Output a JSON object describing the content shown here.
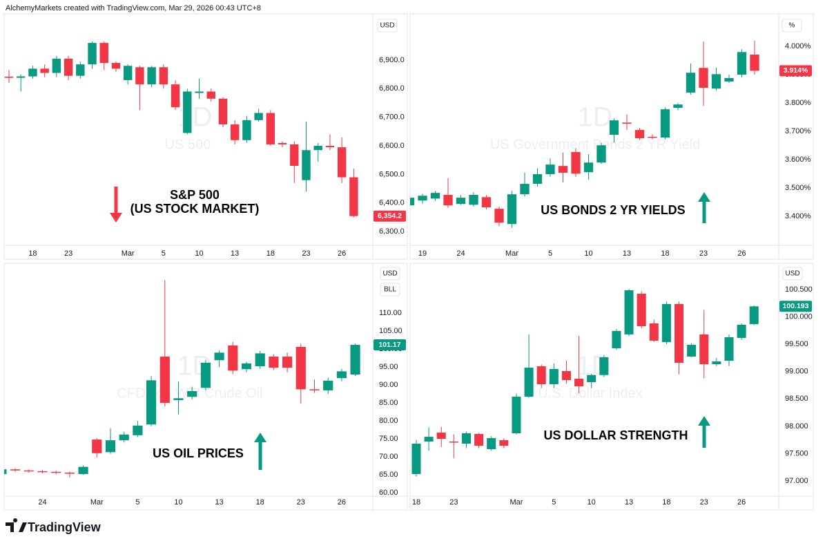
{
  "header": "AlchemyMarkets created with TradingView.com, Mar 29, 2026 00:43 UTC+8",
  "footer": "TradingView",
  "chart_data": [
    {
      "type": "candlestick",
      "watermark": [
        "1D",
        "US 500"
      ],
      "annotation": [
        "S&P 500",
        "(US STOCK MARKET)"
      ],
      "axis_labels": [
        "USD"
      ],
      "last_label": "6,354.2",
      "colors": {
        "up": "#089981",
        "down": "#f23645"
      },
      "categories": [
        null,
        null,
        "18",
        null,
        null,
        "23",
        null,
        null,
        null,
        null,
        "Mar",
        null,
        null,
        "5",
        null,
        null,
        "10",
        null,
        null,
        "13",
        null,
        null,
        "18",
        null,
        null,
        "23",
        null,
        null,
        "26",
        null
      ],
      "open": [
        6842,
        6838,
        6843,
        6870,
        6855,
        6905,
        6845,
        6885,
        6960,
        6890,
        6830,
        6875,
        6815,
        6875,
        6815,
        6645,
        6785,
        6790,
        6765,
        6675,
        6620,
        6690,
        6715,
        6610,
        6605,
        6480,
        6585,
        6600,
        6595,
        6490
      ],
      "close": [
        6838,
        6843,
        6870,
        6855,
        6905,
        6845,
        6885,
        6960,
        6890,
        6870,
        6880,
        6815,
        6875,
        6815,
        6735,
        6790,
        6790,
        6765,
        6675,
        6620,
        6690,
        6715,
        6605,
        6605,
        6530,
        6585,
        6600,
        6595,
        6490,
        6354.2
      ],
      "high": [
        6865,
        6850,
        6880,
        6885,
        6915,
        6915,
        6895,
        6965,
        6965,
        6895,
        6885,
        6880,
        6880,
        6885,
        6830,
        6800,
        6835,
        6800,
        6770,
        6690,
        6705,
        6730,
        6725,
        6615,
        6615,
        6685,
        6610,
        6640,
        6630,
        6520
      ],
      "low": [
        6820,
        6790,
        6835,
        6840,
        6840,
        6830,
        6835,
        6870,
        6865,
        6860,
        6815,
        6725,
        6805,
        6800,
        6725,
        6640,
        6765,
        6755,
        6665,
        6605,
        6610,
        6685,
        6600,
        6595,
        6470,
        6440,
        6545,
        6585,
        6470,
        6350
      ],
      "ylim": [
        6252,
        7057
      ],
      "grid": false,
      "yticks": [
        {
          "value": 6300,
          "label": "6,300.0"
        },
        {
          "value": 6400,
          "label": "6,400.0"
        },
        {
          "value": 6500,
          "label": "6,500.0"
        },
        {
          "value": 6600,
          "label": "6,600.0"
        },
        {
          "value": 6700,
          "label": "6,700.0"
        },
        {
          "value": 6800,
          "label": "6,800.0"
        },
        {
          "value": 6900,
          "label": "6,900.0"
        }
      ]
    },
    {
      "type": "candlestick",
      "watermark": [
        "1D",
        "US Government Bonds 2 YR Yield"
      ],
      "annotation": [
        "US BONDS 2 YR YIELDS"
      ],
      "axis_labels": [
        "%"
      ],
      "last_label": "3.914%",
      "colors": {
        "up": "#089981",
        "down": "#f23645"
      },
      "categories": [
        null,
        "19",
        null,
        null,
        "24",
        null,
        null,
        null,
        "Mar",
        null,
        null,
        "5",
        null,
        null,
        "10",
        null,
        null,
        "13",
        null,
        null,
        "18",
        null,
        null,
        "23",
        null,
        null,
        "26",
        null
      ],
      "open": [
        3.439,
        3.456,
        3.463,
        3.476,
        3.444,
        3.441,
        3.468,
        3.427,
        3.373,
        3.478,
        3.515,
        3.549,
        3.578,
        3.627,
        3.556,
        3.59,
        3.688,
        3.731,
        3.705,
        3.681,
        3.678,
        3.783,
        3.837,
        3.924,
        3.851,
        3.876,
        3.9,
        3.971
      ],
      "close": [
        3.466,
        3.473,
        3.483,
        3.439,
        3.466,
        3.476,
        3.432,
        3.378,
        3.478,
        3.515,
        3.549,
        3.583,
        3.554,
        3.551,
        3.59,
        3.651,
        3.739,
        3.727,
        3.676,
        3.678,
        3.778,
        3.795,
        3.907,
        3.854,
        3.902,
        3.888,
        3.98,
        3.914
      ],
      "high": [
        3.475,
        3.48,
        3.49,
        3.535,
        3.475,
        3.485,
        3.475,
        3.435,
        3.49,
        3.555,
        3.57,
        3.605,
        3.625,
        3.64,
        3.62,
        3.66,
        3.745,
        3.76,
        3.712,
        3.69,
        3.785,
        3.8,
        3.94,
        4.017,
        3.925,
        3.9,
        3.99,
        4.02
      ],
      "low": [
        3.43,
        3.445,
        3.455,
        3.43,
        3.44,
        3.435,
        3.425,
        3.365,
        3.36,
        3.47,
        3.505,
        3.54,
        3.52,
        3.54,
        3.53,
        3.585,
        3.66,
        3.705,
        3.67,
        3.672,
        3.672,
        3.775,
        3.83,
        3.79,
        3.845,
        3.87,
        3.89,
        3.9
      ],
      "ylim": [
        3.298,
        4.11
      ],
      "grid": false,
      "yticks": [
        {
          "value": 3.4,
          "label": "3.400%"
        },
        {
          "value": 3.5,
          "label": "3.500%"
        },
        {
          "value": 3.6,
          "label": "3.600%"
        },
        {
          "value": 3.7,
          "label": "3.700%"
        },
        {
          "value": 3.8,
          "label": "3.800%"
        },
        {
          "value": 3.9,
          "label": "3.900%"
        },
        {
          "value": 4.0,
          "label": "4.000%"
        }
      ]
    },
    {
      "type": "candlestick",
      "watermark": [
        "1D",
        "CFDs on WTI Crude Oil"
      ],
      "annotation": [
        "US OIL PRICES"
      ],
      "axis_labels": [
        "USD",
        "BLL"
      ],
      "last_label": "101.17",
      "colors": {
        "up": "#089981",
        "down": "#f23645"
      },
      "categories": [
        null,
        null,
        null,
        "24",
        null,
        null,
        null,
        "Mar",
        null,
        null,
        "5",
        null,
        null,
        "10",
        null,
        null,
        "13",
        null,
        null,
        "18",
        null,
        null,
        "23",
        null,
        null,
        "26",
        null
      ],
      "open": [
        65.2,
        66.5,
        66.2,
        66.0,
        65.8,
        65.6,
        65.2,
        74.8,
        71.3,
        74.6,
        76.0,
        79.0,
        97.9,
        85.8,
        86.7,
        89.2,
        96.9,
        101.0,
        94.4,
        95.2,
        97.9,
        97.9,
        100.6,
        88.8,
        88.5,
        91.9,
        92.9
      ],
      "close": [
        66.5,
        66.2,
        66.0,
        65.8,
        65.6,
        65.3,
        67.2,
        71.0,
        74.6,
        76.2,
        78.7,
        91.3,
        85.0,
        86.3,
        88.3,
        96.2,
        99.0,
        94.0,
        96.0,
        98.8,
        94.8,
        94.8,
        88.8,
        88.5,
        91.2,
        93.8,
        101.17
      ],
      "high": [
        66.8,
        66.8,
        66.5,
        66.3,
        66.1,
        65.9,
        67.6,
        75.2,
        78.0,
        77.0,
        80.0,
        92.5,
        119.2,
        91.0,
        89.5,
        97.0,
        99.5,
        102.0,
        96.5,
        99.5,
        98.5,
        99.0,
        101.5,
        91.5,
        92.0,
        94.5,
        101.5
      ],
      "low": [
        64.8,
        65.8,
        65.6,
        65.4,
        65.2,
        64.2,
        65.0,
        69.8,
        70.8,
        74.0,
        75.5,
        78.5,
        84.0,
        81.8,
        86.0,
        88.5,
        95.0,
        93.0,
        93.5,
        94.5,
        94.2,
        93.5,
        84.8,
        87.8,
        87.5,
        91.0,
        92.5
      ],
      "ylim": [
        59.04,
        123.5
      ],
      "grid": false,
      "yticks": [
        {
          "value": 60,
          "label": "60.00"
        },
        {
          "value": 65,
          "label": "65.00"
        },
        {
          "value": 70,
          "label": "70.00"
        },
        {
          "value": 75,
          "label": "75.00"
        },
        {
          "value": 80,
          "label": "80.00"
        },
        {
          "value": 85,
          "label": "85.00"
        },
        {
          "value": 90,
          "label": "90.00"
        },
        {
          "value": 95,
          "label": "95.00"
        },
        {
          "value": 100,
          "label": "100.00"
        },
        {
          "value": 105,
          "label": "105.00"
        },
        {
          "value": 110,
          "label": "110.00"
        }
      ]
    },
    {
      "type": "candlestick",
      "watermark": [
        "1D",
        "U.S. Dollar Index"
      ],
      "annotation": [
        "US DOLLAR STRENGTH"
      ],
      "axis_labels": [
        "USD"
      ],
      "last_label": "100.193",
      "colors": {
        "up": "#089981",
        "down": "#f23645"
      },
      "categories": [
        "18",
        null,
        null,
        "23",
        null,
        null,
        null,
        null,
        "Mar",
        null,
        null,
        "5",
        null,
        null,
        "10",
        null,
        null,
        "13",
        null,
        null,
        "18",
        null,
        null,
        "23",
        null,
        null,
        "26",
        null
      ],
      "open": [
        97.126,
        97.72,
        97.884,
        97.72,
        97.682,
        97.859,
        97.581,
        97.745,
        97.872,
        98.541,
        99.097,
        98.769,
        99.009,
        98.87,
        98.807,
        98.937,
        99.426,
        99.679,
        100.424,
        99.881,
        99.54,
        100.235,
        99.274,
        99.679,
        99.135,
        99.198,
        99.616,
        99.868
      ],
      "close": [
        97.682,
        97.808,
        97.77,
        97.71,
        97.872,
        97.644,
        97.783,
        97.644,
        98.541,
        99.072,
        98.769,
        99.047,
        98.845,
        98.731,
        98.937,
        99.262,
        99.742,
        100.487,
        99.83,
        99.565,
        100.235,
        99.161,
        99.489,
        99.135,
        99.186,
        99.628,
        99.856,
        100.193
      ],
      "high": [
        97.75,
        97.98,
        97.99,
        97.85,
        97.9,
        97.88,
        97.82,
        97.78,
        98.6,
        99.68,
        99.13,
        99.15,
        99.2,
        99.65,
        98.96,
        99.3,
        99.78,
        100.51,
        100.47,
        99.95,
        100.28,
        100.28,
        99.52,
        100.13,
        99.25,
        99.68,
        99.88,
        100.21
      ],
      "low": [
        97.08,
        97.55,
        97.62,
        97.42,
        97.6,
        97.6,
        97.55,
        97.6,
        97.85,
        98.52,
        98.7,
        98.7,
        98.78,
        98.6,
        98.7,
        98.9,
        99.4,
        99.65,
        99.79,
        99.54,
        99.5,
        98.95,
        99.26,
        98.88,
        99.1,
        99.1,
        99.58,
        99.85
      ],
      "ylim": [
        96.722,
        100.955
      ],
      "grid": false,
      "yticks": [
        {
          "value": 97,
          "label": "97.000"
        },
        {
          "value": 97.5,
          "label": "97.500"
        },
        {
          "value": 98,
          "label": "98.000"
        },
        {
          "value": 98.5,
          "label": "98.500"
        },
        {
          "value": 99,
          "label": "99.000"
        },
        {
          "value": 99.5,
          "label": "99.500"
        },
        {
          "value": 100,
          "label": "100.000"
        },
        {
          "value": 100.5,
          "label": "100.500"
        }
      ]
    }
  ]
}
